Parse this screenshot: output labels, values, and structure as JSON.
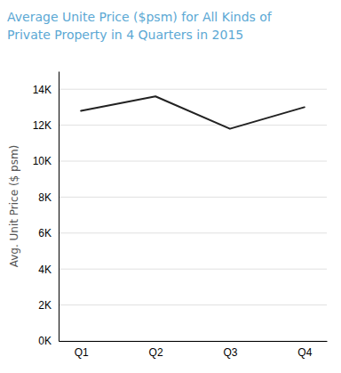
{
  "chart_data": {
    "type": "line",
    "title": "Average Unite Price ($psm) for All Kinds of",
    "subtitle": "Private Property in 4 Quarters in 2015",
    "y_label": "Avg. Unit Price ($ psm)",
    "categories": [
      "Q1",
      "Q2",
      "Q3",
      "Q4"
    ],
    "values": [
      12800,
      13600,
      11800,
      13000
    ],
    "color": "#222222",
    "ylim": [
      0,
      15000
    ],
    "yticks": [
      {
        "value": 0,
        "label": "0K"
      },
      {
        "value": 2000,
        "label": "2K"
      },
      {
        "value": 4000,
        "label": "4K"
      },
      {
        "value": 6000,
        "label": "6K"
      },
      {
        "value": 8000,
        "label": "8K"
      },
      {
        "value": 10000,
        "label": "10K"
      },
      {
        "value": 12000,
        "label": "12K"
      },
      {
        "value": 14000,
        "label": "14K"
      }
    ],
    "grid": true
  }
}
